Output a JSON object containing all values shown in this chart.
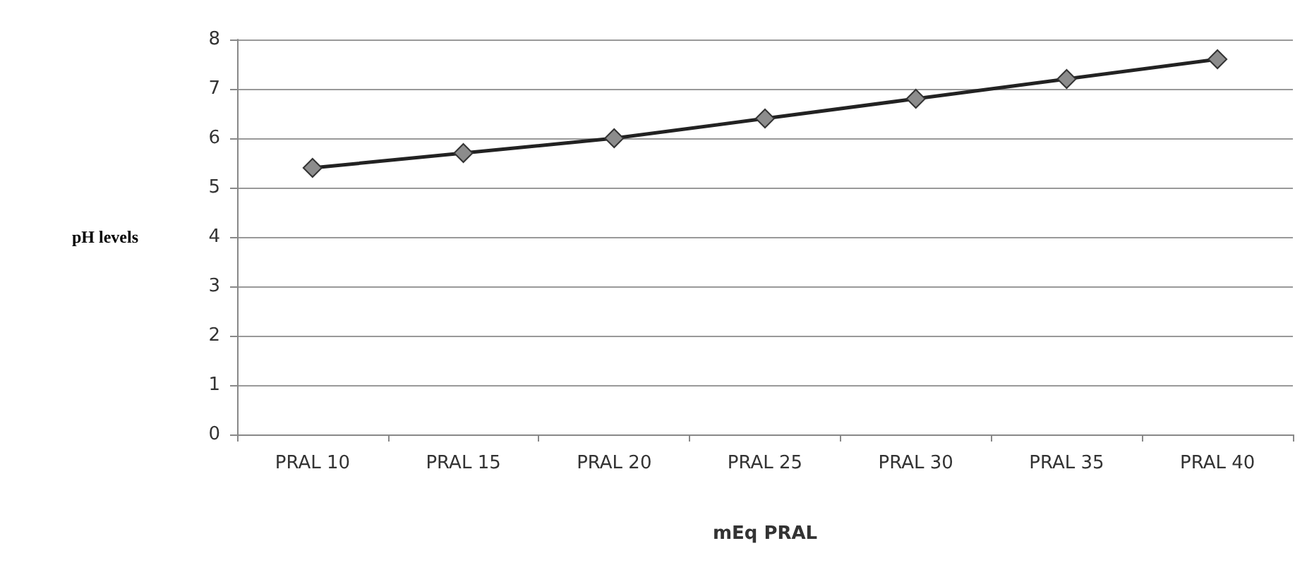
{
  "chart_data": {
    "type": "line",
    "xlabel": "mEq PRAL",
    "ylabel": "pH levels",
    "categories": [
      "PRAL 10",
      "PRAL 15",
      "PRAL 20",
      "PRAL 25",
      "PRAL 30",
      "PRAL 35",
      "PRAL 40"
    ],
    "series": [
      {
        "color": "#222222",
        "values": [
          5.4,
          5.7,
          6.0,
          6.4,
          6.8,
          7.2,
          7.6
        ]
      }
    ],
    "ylim": [
      0,
      8
    ],
    "yticks": [
      0,
      1,
      2,
      3,
      4,
      5,
      6,
      7,
      8
    ],
    "grid": "y",
    "marker": "diamond",
    "line_style": "solid"
  }
}
